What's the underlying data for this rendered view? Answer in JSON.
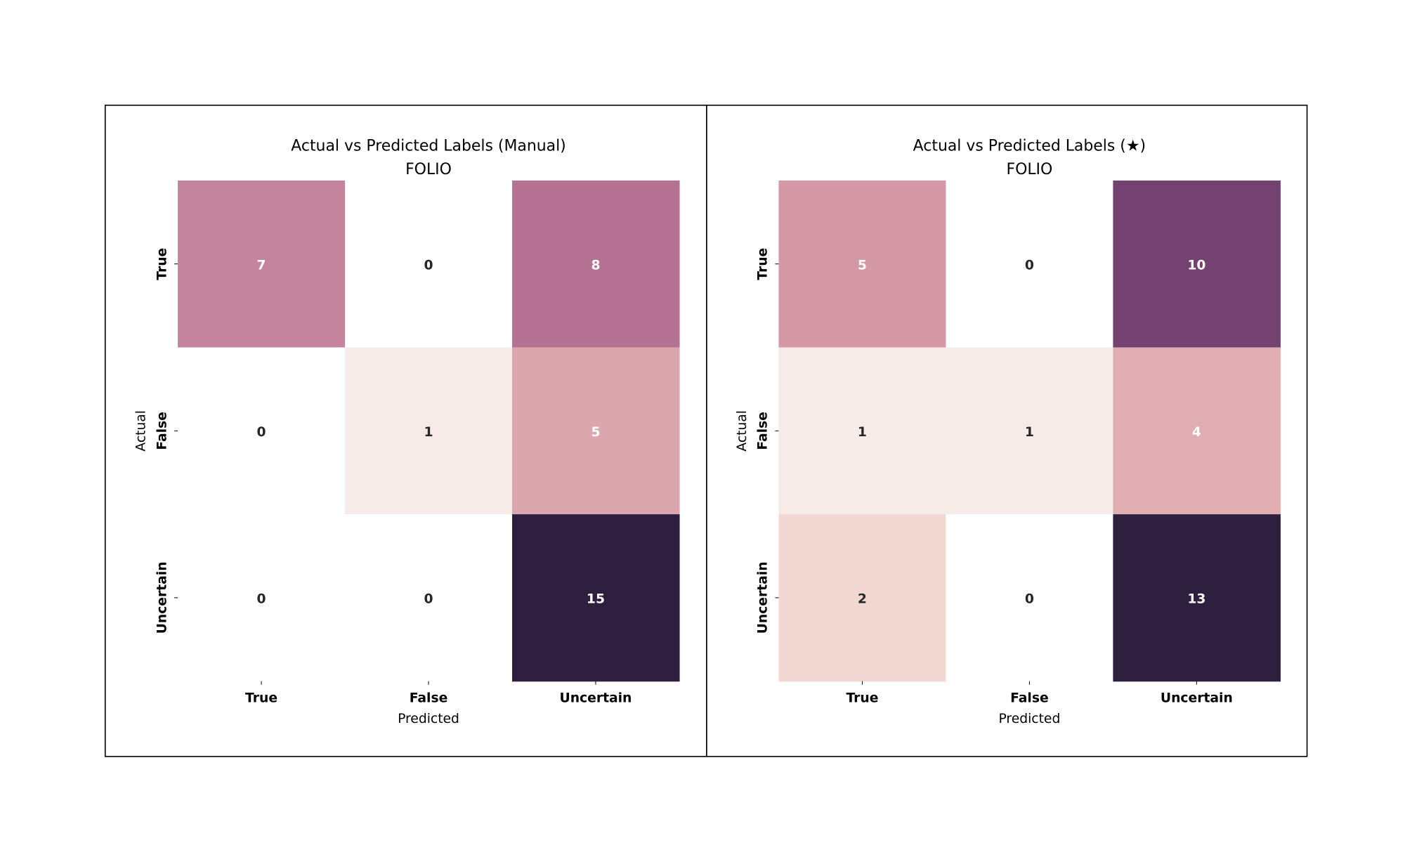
{
  "chart_data": [
    {
      "type": "heatmap",
      "title_line1": "Actual vs Predicted Labels (Manual)",
      "title_line2": "FOLIO",
      "xlabel": "Predicted",
      "ylabel": "Actual",
      "x_categories": [
        "True",
        "False",
        "Uncertain"
      ],
      "y_categories": [
        "True",
        "False",
        "Uncertain"
      ],
      "values": [
        [
          7,
          0,
          8
        ],
        [
          0,
          1,
          5
        ],
        [
          0,
          0,
          15
        ]
      ],
      "cell_colors": [
        [
          "#c4849c",
          "#ffffff",
          "#b57292"
        ],
        [
          "#ffffff",
          "#f6ebe7",
          "#dca6af"
        ],
        [
          "#ffffff",
          "#ffffff",
          "#2e1f3f"
        ]
      ]
    },
    {
      "type": "heatmap",
      "title_line1": "Actual vs Predicted Labels (★)",
      "title_line2": "FOLIO",
      "xlabel": "Predicted",
      "ylabel": "Actual",
      "x_categories": [
        "True",
        "False",
        "Uncertain"
      ],
      "y_categories": [
        "True",
        "False",
        "Uncertain"
      ],
      "values": [
        [
          5,
          0,
          10
        ],
        [
          1,
          1,
          4
        ],
        [
          2,
          0,
          13
        ]
      ],
      "cell_colors": [
        [
          "#d498a6",
          "#ffffff",
          "#744271"
        ],
        [
          "#f6ebe7",
          "#f6ebe7",
          "#e0aeb2"
        ],
        [
          "#f1d6d2",
          "#ffffff",
          "#2e1f3f"
        ]
      ]
    }
  ]
}
